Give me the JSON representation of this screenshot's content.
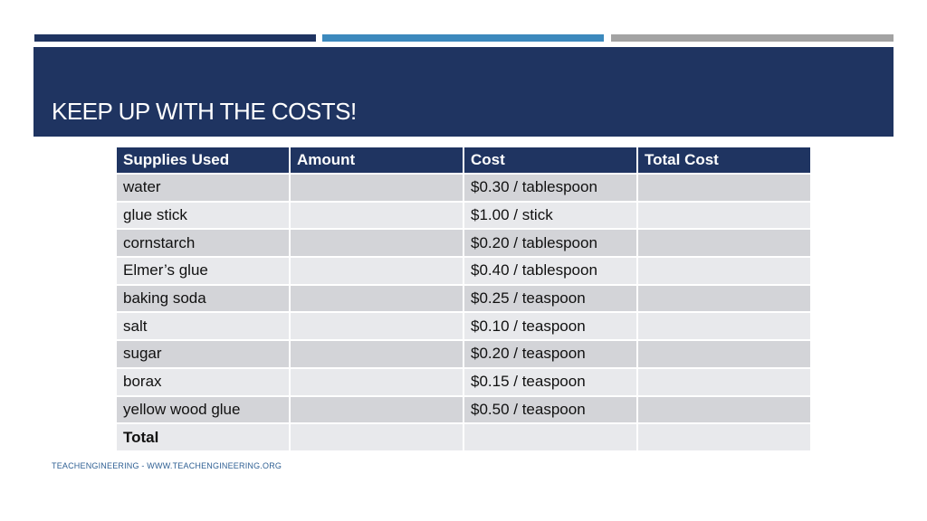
{
  "colors": {
    "navy": "#1f3461",
    "steel_blue": "#3c89bd",
    "gray": "#a3a3a3",
    "row_dark": "#d3d4d8",
    "row_light": "#e8e9ec",
    "footer_blue": "#2e5f93"
  },
  "slide": {
    "title": "KEEP UP WITH THE COSTS!",
    "footer": "TEACHENGINEERING - WWW.TEACHENGINEERING.ORG"
  },
  "table": {
    "headers": [
      "Supplies Used",
      "Amount",
      "Cost",
      "Total Cost"
    ],
    "rows": [
      [
        "water",
        "",
        "$0.30 / tablespoon",
        ""
      ],
      [
        "glue stick",
        "",
        "$1.00 / stick",
        ""
      ],
      [
        "cornstarch",
        "",
        "$0.20 / tablespoon",
        ""
      ],
      [
        "Elmer’s glue",
        "",
        "$0.40 / tablespoon",
        ""
      ],
      [
        "baking soda",
        "",
        "$0.25 / teaspoon",
        ""
      ],
      [
        "salt",
        "",
        "$0.10 / teaspoon",
        ""
      ],
      [
        "sugar",
        "",
        "$0.20 / teaspoon",
        ""
      ],
      [
        "borax",
        "",
        "$0.15 / teaspoon",
        ""
      ],
      [
        "yellow wood glue",
        "",
        "$0.50 / teaspoon",
        ""
      ],
      [
        "Total",
        "",
        "",
        ""
      ]
    ]
  }
}
